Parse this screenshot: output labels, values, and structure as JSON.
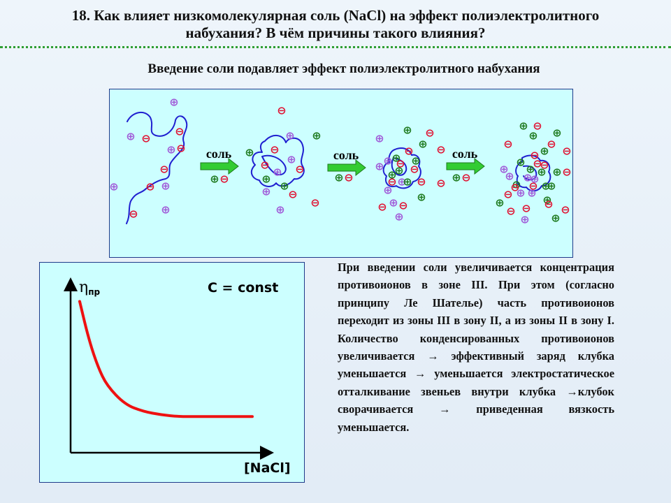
{
  "slide": {
    "title_line1": "18. Как влияет низкомолекулярная соль  (NaCl) на эффект полиэлектролитного",
    "title_line2": "набухания? В чём причины такого влияния?",
    "subtitle": "Введение соли подавляет эффект полиэлектролитного набухания"
  },
  "scheme": {
    "arrow_label": "соль",
    "plus_symbol": "⊕",
    "minus_symbol": "⊖",
    "colors": {
      "chain": "#1f1fd0",
      "plus_salt": "#1e7a1e",
      "plus_counterion": "#a05ad8",
      "minus": "#e01030",
      "arrow": "#33cc33"
    }
  },
  "graph": {
    "y_label_symbol": "η",
    "y_label_subscript": "пр",
    "x_label": "[NaCl]",
    "annotation": "C = const",
    "curve_color": "#ee1111"
  },
  "chart_data": {
    "type": "line",
    "title": "",
    "xlabel": "[NaCl]",
    "ylabel": "ηпр",
    "annotation": "C = const",
    "x": [
      0.05,
      0.1,
      0.15,
      0.2,
      0.3,
      0.4,
      0.5,
      0.6,
      0.7,
      0.8,
      0.9,
      1.0
    ],
    "series": [
      {
        "values": [
          0.88,
          0.66,
          0.5,
          0.39,
          0.28,
          0.24,
          0.22,
          0.21,
          0.21,
          0.21,
          0.21,
          0.21
        ]
      }
    ],
    "xlim": [
      0,
      1.1
    ],
    "ylim": [
      0,
      1
    ],
    "grid": false
  },
  "explanation": {
    "text": "При введении соли увеличивается концентрация противоионов в зоне III. При этом (согласно принципу Ле Шателье) часть противоионов переходит из зоны III в зону II, а из зоны II в зону I. Количество конденсированных противоионов увеличивается → эффективный заряд клубка уменьшается → уменьшается электростатическое отталкивание звеньев внутри клубка →клубок сворачивается → приведенная вязкость уменьшается."
  }
}
